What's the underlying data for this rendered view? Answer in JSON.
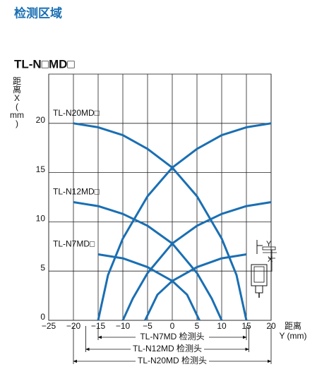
{
  "page_title": "检测区域",
  "chart_data": {
    "type": "line",
    "title": "TL-N□MD□",
    "y_label_lines": [
      "距",
      "离",
      "X",
      "(",
      "mm",
      ")"
    ],
    "x_label_lines": [
      "距离",
      "Y (mm)"
    ],
    "xlim": [
      -25,
      20
    ],
    "ylim": [
      0,
      25
    ],
    "xticks": [
      {
        "value": -25,
        "label": "−25"
      },
      {
        "value": -20,
        "label": "−20"
      },
      {
        "value": -15,
        "label": "−15"
      },
      {
        "value": -10,
        "label": "−10"
      },
      {
        "value": -5,
        "label": "−5"
      },
      0,
      5,
      10,
      15,
      20
    ],
    "yticks": [
      0,
      5,
      10,
      15,
      20
    ],
    "grid": true,
    "series": [
      {
        "name": "TL-N20MD□",
        "color": "#1a6fb3",
        "curves": [
          {
            "x": [
              -20,
              -15,
              -10,
              -5,
              0,
              5,
              10,
              13,
              15
            ],
            "values": [
              20,
              19.6,
              18.8,
              17.4,
              15.5,
              12.6,
              8.3,
              4.6,
              0
            ]
          },
          {
            "x": [
              -15,
              -13,
              -10,
              -5,
              0,
              5,
              10,
              15,
              20
            ],
            "values": [
              0,
              4.6,
              8.3,
              12.6,
              15.5,
              17.4,
              18.8,
              19.6,
              20
            ]
          }
        ]
      },
      {
        "name": "TL-N12MD□",
        "color": "#1a6fb3",
        "curves": [
          {
            "x": [
              -20,
              -15,
              -10,
              -5,
              0,
              5,
              8,
              10
            ],
            "values": [
              12,
              11.6,
              10.8,
              9.6,
              7.8,
              4.8,
              2.2,
              0
            ]
          },
          {
            "x": [
              -10,
              -8,
              -5,
              0,
              5,
              10,
              15,
              20
            ],
            "values": [
              0,
              2.2,
              4.8,
              7.8,
              9.6,
              10.8,
              11.6,
              12
            ]
          }
        ]
      },
      {
        "name": "TL-N7MD□",
        "color": "#1a6fb3",
        "curves": [
          {
            "x": [
              -15,
              -10,
              -5,
              0,
              3,
              5.5
            ],
            "values": [
              6.7,
              6.3,
              5.4,
              4,
              2.6,
              0
            ]
          },
          {
            "x": [
              -5.5,
              -3,
              0,
              5,
              10,
              15
            ],
            "values": [
              0,
              2.6,
              4,
              5.4,
              6.3,
              6.7
            ]
          }
        ]
      }
    ],
    "ranges": [
      {
        "label": "TL-N7MD 检测头",
        "from": -15,
        "to": 15
      },
      {
        "label": "TL-N12MD 检测头",
        "from": -17.5,
        "to": 15.5
      },
      {
        "label": "TL-N20MD 检测头",
        "from": -20,
        "to": 20
      }
    ],
    "inset": {
      "y_label": "Y",
      "x_label": "X"
    }
  }
}
